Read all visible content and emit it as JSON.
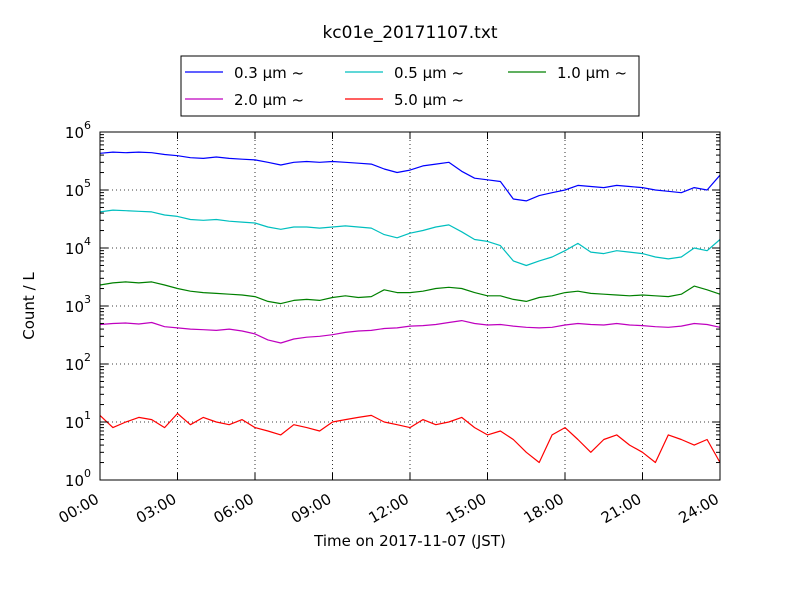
{
  "chart_data": {
    "type": "line",
    "title": "kc01e_20171107.txt",
    "xlabel": "Time on 2017-11-07 (JST)",
    "ylabel": "Count / L",
    "yscale": "log",
    "ylim": [
      1,
      1000000
    ],
    "xlim": [
      0,
      24
    ],
    "grid": true,
    "legend_position": "top-center",
    "x_tick_labels": [
      "00:00",
      "03:00",
      "06:00",
      "09:00",
      "12:00",
      "15:00",
      "18:00",
      "21:00",
      "24:00"
    ],
    "y_tick_labels": [
      {
        "base": "10",
        "exp": "0"
      },
      {
        "base": "10",
        "exp": "1"
      },
      {
        "base": "10",
        "exp": "2"
      },
      {
        "base": "10",
        "exp": "3"
      },
      {
        "base": "10",
        "exp": "4"
      },
      {
        "base": "10",
        "exp": "5"
      },
      {
        "base": "10",
        "exp": "6"
      }
    ],
    "x": [
      0,
      0.5,
      1,
      1.5,
      2,
      2.5,
      3,
      3.5,
      4,
      4.5,
      5,
      5.5,
      6,
      6.5,
      7,
      7.5,
      8,
      8.5,
      9,
      9.5,
      10,
      10.5,
      11,
      11.5,
      12,
      12.5,
      13,
      13.5,
      14,
      14.5,
      15,
      15.5,
      16,
      16.5,
      17,
      17.5,
      18,
      18.5,
      19,
      19.5,
      20,
      20.5,
      21,
      21.5,
      22,
      22.5,
      23,
      23.5,
      24
    ],
    "series": [
      {
        "name": "0.3 μm ~",
        "color": "#0000ff",
        "values": [
          430000,
          450000,
          440000,
          450000,
          440000,
          410000,
          390000,
          360000,
          350000,
          370000,
          350000,
          340000,
          330000,
          300000,
          270000,
          300000,
          310000,
          300000,
          310000,
          300000,
          290000,
          280000,
          230000,
          200000,
          220000,
          260000,
          280000,
          300000,
          210000,
          160000,
          150000,
          140000,
          70000,
          65000,
          80000,
          90000,
          100000,
          120000,
          115000,
          110000,
          120000,
          115000,
          110000,
          100000,
          95000,
          90000,
          110000,
          100000,
          180000
        ]
      },
      {
        "name": "0.5 μm ~",
        "color": "#00bfbf",
        "values": [
          42000,
          45000,
          44000,
          43000,
          42000,
          37000,
          35000,
          31000,
          30000,
          31000,
          29000,
          28000,
          27000,
          23000,
          21000,
          23000,
          23000,
          22000,
          23000,
          24000,
          23000,
          22000,
          17000,
          15000,
          18000,
          20000,
          23000,
          25000,
          19000,
          14000,
          13000,
          11000,
          6000,
          5000,
          6000,
          7000,
          9000,
          12000,
          8500,
          8000,
          9000,
          8500,
          8000,
          7000,
          6500,
          7000,
          10000,
          9000,
          14000
        ]
      },
      {
        "name": "1.0 μm ~",
        "color": "#008000",
        "values": [
          2300,
          2500,
          2600,
          2500,
          2600,
          2300,
          2000,
          1800,
          1700,
          1650,
          1600,
          1550,
          1450,
          1200,
          1100,
          1250,
          1300,
          1250,
          1400,
          1500,
          1400,
          1450,
          1900,
          1700,
          1700,
          1800,
          2000,
          2100,
          2000,
          1700,
          1500,
          1500,
          1300,
          1200,
          1400,
          1500,
          1700,
          1800,
          1650,
          1600,
          1550,
          1500,
          1550,
          1500,
          1450,
          1600,
          2200,
          1900,
          1600
        ]
      },
      {
        "name": "2.0 μm ~",
        "color": "#bf00bf",
        "values": [
          480,
          500,
          510,
          490,
          520,
          440,
          420,
          400,
          390,
          380,
          400,
          370,
          330,
          260,
          230,
          270,
          290,
          300,
          320,
          350,
          370,
          380,
          410,
          420,
          450,
          460,
          480,
          520,
          560,
          500,
          470,
          480,
          450,
          430,
          420,
          430,
          470,
          500,
          480,
          470,
          500,
          470,
          460,
          440,
          430,
          450,
          500,
          480,
          430
        ]
      },
      {
        "name": "5.0 μm ~",
        "color": "#ff0000",
        "values": [
          13,
          8,
          10,
          12,
          11,
          8,
          14,
          9,
          12,
          10,
          9,
          11,
          8,
          7,
          6,
          9,
          8,
          7,
          10,
          11,
          12,
          13,
          10,
          9,
          8,
          11,
          9,
          10,
          12,
          8,
          6,
          7,
          5,
          3,
          2,
          6,
          8,
          5,
          3,
          5,
          6,
          4,
          3,
          2,
          6,
          5,
          4,
          5,
          2
        ]
      }
    ]
  }
}
